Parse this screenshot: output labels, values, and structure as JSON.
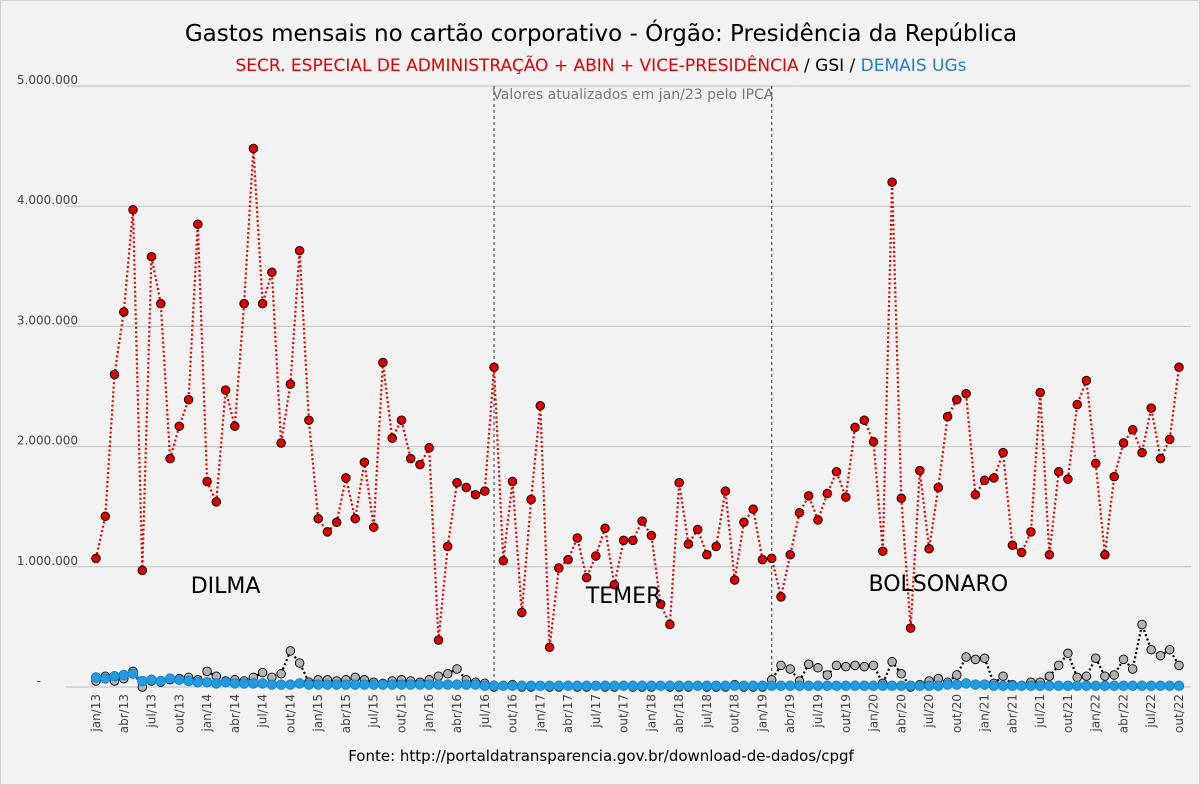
{
  "chart_data": {
    "type": "line",
    "title": "Gastos mensais no cartão corporativo - Órgão: Presidência da República",
    "subtitle": [
      {
        "text": "SECR. ESPECIAL DE ADMINISTRAÇÃO + ABIN + VICE-PRESIDÊNCIA",
        "color": "#e00000"
      },
      {
        "text": " / GSI / ",
        "color": "#000000"
      },
      {
        "text": "DEMAIS UGs",
        "color": "#1f7fc4"
      }
    ],
    "note": "Valores atualizados em jan/23 pelo IPCA",
    "source": "Fonte: http://portaldatransparencia.gov.br/download-de-dados/cpgf",
    "ylim": [
      0,
      5000000
    ],
    "yticks": [
      {
        "value": 0,
        "label": "-"
      },
      {
        "value": 1000000,
        "label": "1.000.000"
      },
      {
        "value": 2000000,
        "label": "2.000.000"
      },
      {
        "value": 3000000,
        "label": "3.000.000"
      },
      {
        "value": 4000000,
        "label": "4.000.000"
      },
      {
        "value": 5000000,
        "label": "5.000.000"
      }
    ],
    "xtick_labels": [
      {
        "index": 0,
        "label": "jan/13"
      },
      {
        "index": 3,
        "label": "abr/13"
      },
      {
        "index": 6,
        "label": "jul/13"
      },
      {
        "index": 9,
        "label": "out/13"
      },
      {
        "index": 12,
        "label": "jan/14"
      },
      {
        "index": 15,
        "label": "abr/14"
      },
      {
        "index": 18,
        "label": "jul/14"
      },
      {
        "index": 21,
        "label": "out/14"
      },
      {
        "index": 24,
        "label": "jan/15"
      },
      {
        "index": 27,
        "label": "abr/15"
      },
      {
        "index": 30,
        "label": "jul/15"
      },
      {
        "index": 33,
        "label": "out/15"
      },
      {
        "index": 36,
        "label": "jan/16"
      },
      {
        "index": 39,
        "label": "abr/16"
      },
      {
        "index": 42,
        "label": "jul/16"
      },
      {
        "index": 45,
        "label": "out/16"
      },
      {
        "index": 48,
        "label": "jan/17"
      },
      {
        "index": 51,
        "label": "abr/17"
      },
      {
        "index": 54,
        "label": "jul/17"
      },
      {
        "index": 57,
        "label": "out/17"
      },
      {
        "index": 60,
        "label": "jan/18"
      },
      {
        "index": 63,
        "label": "abr/18"
      },
      {
        "index": 66,
        "label": "jul/18"
      },
      {
        "index": 69,
        "label": "out/18"
      },
      {
        "index": 72,
        "label": "jan/19"
      },
      {
        "index": 75,
        "label": "abr/19"
      },
      {
        "index": 78,
        "label": "jul/19"
      },
      {
        "index": 81,
        "label": "out/19"
      },
      {
        "index": 84,
        "label": "jan/20"
      },
      {
        "index": 87,
        "label": "abr/20"
      },
      {
        "index": 90,
        "label": "jul/20"
      },
      {
        "index": 93,
        "label": "out/20"
      },
      {
        "index": 96,
        "label": "jan/21"
      },
      {
        "index": 99,
        "label": "abr/21"
      },
      {
        "index": 102,
        "label": "jul/21"
      },
      {
        "index": 105,
        "label": "out/21"
      },
      {
        "index": 108,
        "label": "jan/22"
      },
      {
        "index": 111,
        "label": "abr/22"
      },
      {
        "index": 114,
        "label": "jul/22"
      },
      {
        "index": 117,
        "label": "out/22"
      }
    ],
    "periods": [
      {
        "label": "DILMA",
        "start_index": 0,
        "end_index": 43,
        "label_index": 14,
        "label_value": 780000
      },
      {
        "label": "TEMER",
        "start_index": 43,
        "end_index": 73,
        "label_index": 57,
        "label_value": 700000
      },
      {
        "label": "BOLSONARO",
        "start_index": 73,
        "end_index": 117,
        "label_index": 91,
        "label_value": 800000
      }
    ],
    "dividers": [
      43,
      73
    ],
    "series": [
      {
        "name": "SECR. ESPECIAL DE ADMINISTRAÇÃO + ABIN + VICE-PRESIDÊNCIA",
        "color": "#e00000",
        "values": [
          1070000,
          1420000,
          2600000,
          3120000,
          3970000,
          970000,
          3580000,
          3190000,
          1900000,
          2170000,
          2390000,
          3850000,
          1710000,
          1540000,
          2470000,
          2170000,
          3190000,
          4480000,
          3190000,
          3450000,
          2030000,
          2520000,
          3630000,
          2220000,
          1400000,
          1290000,
          1370000,
          1740000,
          1400000,
          1870000,
          1330000,
          2700000,
          2070000,
          2220000,
          1900000,
          1850000,
          1990000,
          390000,
          1170000,
          1700000,
          1660000,
          1600000,
          1630000,
          2660000,
          1050000,
          1710000,
          620000,
          1560000,
          2340000,
          330000,
          990000,
          1060000,
          1240000,
          910000,
          1090000,
          1320000,
          850000,
          1220000,
          1220000,
          1380000,
          1260000,
          690000,
          520000,
          1700000,
          1190000,
          1310000,
          1100000,
          1170000,
          1630000,
          890000,
          1370000,
          1480000,
          1060000,
          1070000,
          750000,
          1100000,
          1450000,
          1590000,
          1390000,
          1610000,
          1790000,
          1580000,
          2160000,
          2220000,
          2040000,
          1130000,
          4200000,
          1570000,
          490000,
          1800000,
          1150000,
          1660000,
          2250000,
          2390000,
          2440000,
          1600000,
          1720000,
          1740000,
          1950000,
          1180000,
          1120000,
          1290000,
          2450000,
          1100000,
          1790000,
          1730000,
          2350000,
          2550000,
          1860000,
          1100000,
          1750000,
          2030000,
          2140000,
          1950000,
          2320000,
          1900000,
          2060000,
          2660000
        ]
      },
      {
        "name": "GSI",
        "color": "#000000",
        "values": [
          50000,
          90000,
          50000,
          70000,
          130000,
          0,
          50000,
          40000,
          60000,
          70000,
          80000,
          60000,
          130000,
          90000,
          50000,
          60000,
          50000,
          80000,
          120000,
          80000,
          110000,
          300000,
          200000,
          40000,
          60000,
          60000,
          50000,
          60000,
          80000,
          60000,
          40000,
          30000,
          50000,
          60000,
          50000,
          40000,
          60000,
          90000,
          110000,
          150000,
          60000,
          40000,
          30000,
          0,
          10000,
          20000,
          0,
          0,
          10000,
          0,
          0,
          10000,
          0,
          0,
          10000,
          0,
          0,
          10000,
          0,
          0,
          0,
          10000,
          0,
          0,
          0,
          10000,
          0,
          0,
          0,
          20000,
          0,
          0,
          0,
          60000,
          180000,
          150000,
          50000,
          190000,
          160000,
          100000,
          180000,
          170000,
          180000,
          170000,
          180000,
          30000,
          210000,
          110000,
          0,
          20000,
          50000,
          70000,
          40000,
          100000,
          250000,
          230000,
          240000,
          30000,
          90000,
          20000,
          10000,
          40000,
          40000,
          90000,
          180000,
          280000,
          80000,
          90000,
          240000,
          90000,
          100000,
          230000,
          150000,
          520000,
          310000,
          260000,
          310000,
          180000
        ]
      },
      {
        "name": "DEMAIS UGs",
        "color": "#1f7fc4",
        "values": [
          80000,
          70000,
          90000,
          100000,
          110000,
          50000,
          60000,
          50000,
          70000,
          60000,
          50000,
          40000,
          40000,
          30000,
          40000,
          30000,
          30000,
          30000,
          30000,
          20000,
          20000,
          20000,
          30000,
          20000,
          20000,
          20000,
          20000,
          20000,
          20000,
          20000,
          20000,
          20000,
          20000,
          20000,
          20000,
          20000,
          20000,
          20000,
          20000,
          20000,
          20000,
          20000,
          10000,
          10000,
          10000,
          10000,
          10000,
          10000,
          10000,
          10000,
          10000,
          10000,
          10000,
          10000,
          10000,
          10000,
          10000,
          10000,
          10000,
          10000,
          10000,
          10000,
          10000,
          10000,
          10000,
          10000,
          10000,
          10000,
          10000,
          10000,
          10000,
          10000,
          10000,
          10000,
          10000,
          10000,
          10000,
          10000,
          10000,
          10000,
          10000,
          10000,
          10000,
          10000,
          10000,
          10000,
          10000,
          10000,
          10000,
          10000,
          10000,
          10000,
          20000,
          20000,
          30000,
          20000,
          20000,
          10000,
          10000,
          10000,
          10000,
          10000,
          10000,
          10000,
          10000,
          10000,
          10000,
          10000,
          10000,
          10000,
          10000,
          10000,
          10000,
          10000,
          10000,
          10000,
          10000,
          10000
        ]
      }
    ]
  }
}
